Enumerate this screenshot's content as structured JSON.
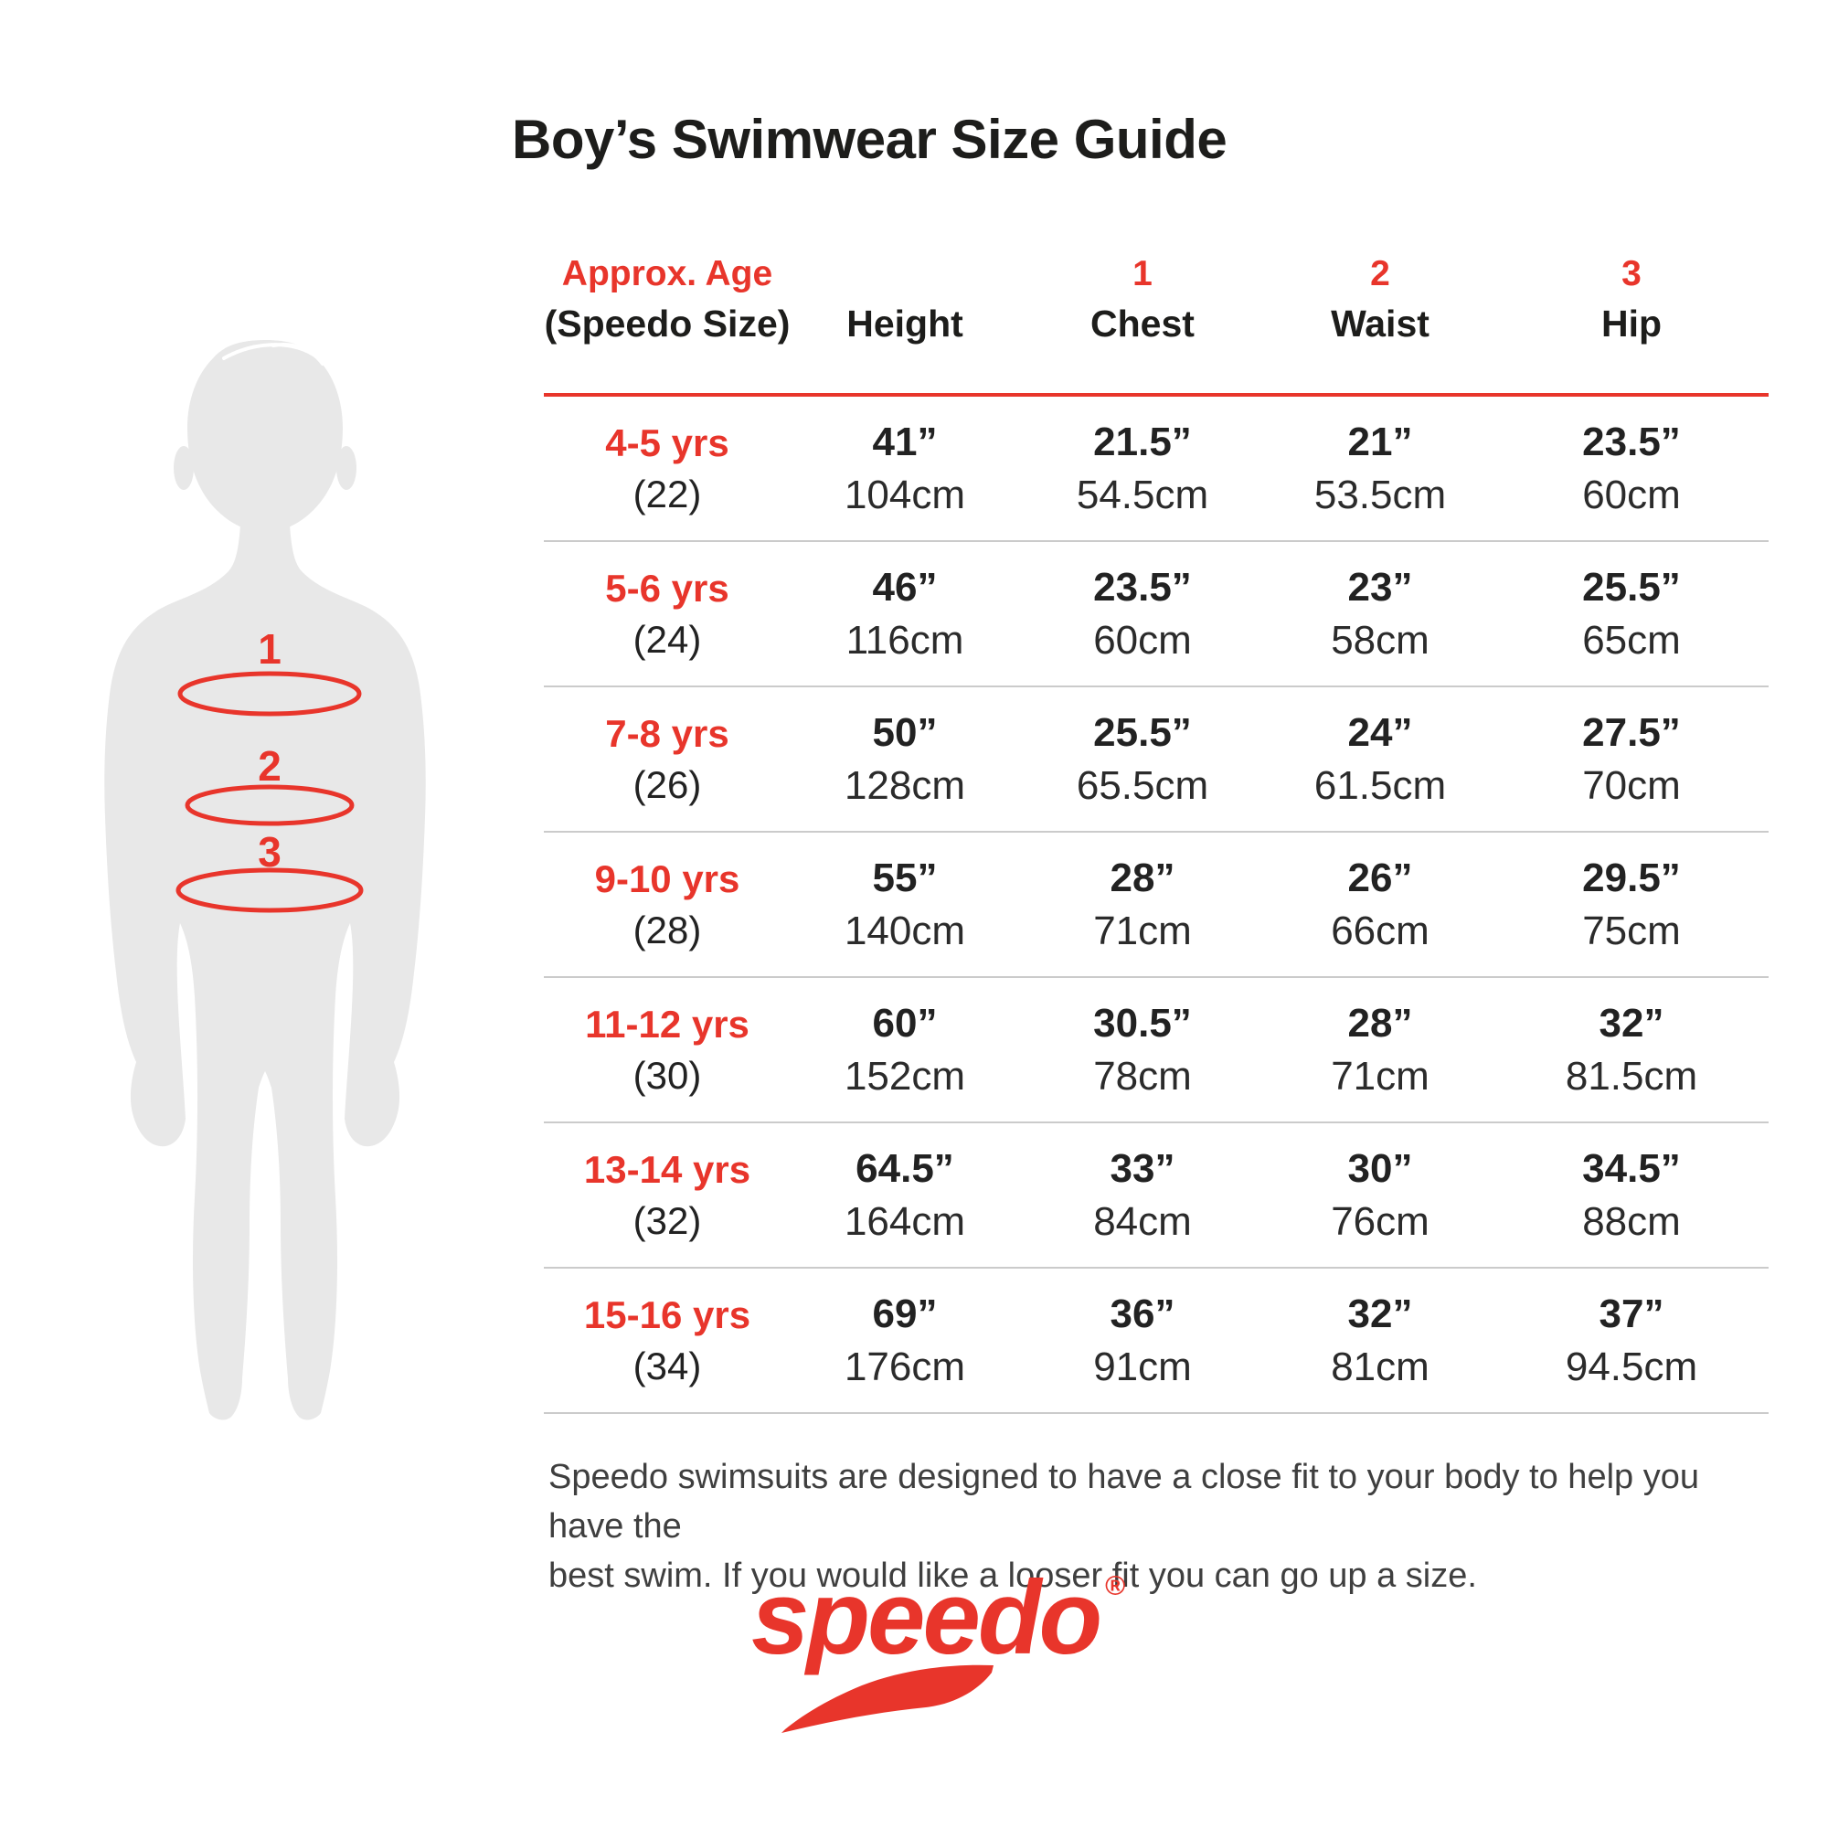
{
  "colors": {
    "accent": "#E8352B",
    "ink": "#1D1D1B",
    "silhouette": "#E8E8E8",
    "divider": "#CBCBCB"
  },
  "title": "Boy’s Swimwear Size Guide",
  "diagram": {
    "markers": [
      {
        "num": "1"
      },
      {
        "num": "2"
      },
      {
        "num": "3"
      }
    ]
  },
  "table": {
    "header": {
      "age_line1": "Approx. Age",
      "age_line2": "(Speedo Size)",
      "height_label": "Height",
      "cols": [
        {
          "num": "1",
          "label": "Chest"
        },
        {
          "num": "2",
          "label": "Waist"
        },
        {
          "num": "3",
          "label": "Hip"
        }
      ]
    },
    "rows": [
      {
        "age": "4-5 yrs",
        "size": "(22)",
        "height_in": "41”",
        "height_cm": "104cm",
        "chest_in": "21.5”",
        "chest_cm": "54.5cm",
        "waist_in": "21”",
        "waist_cm": "53.5cm",
        "hip_in": "23.5”",
        "hip_cm": "60cm"
      },
      {
        "age": "5-6 yrs",
        "size": "(24)",
        "height_in": "46”",
        "height_cm": "116cm",
        "chest_in": "23.5”",
        "chest_cm": "60cm",
        "waist_in": "23”",
        "waist_cm": "58cm",
        "hip_in": "25.5”",
        "hip_cm": "65cm"
      },
      {
        "age": "7-8 yrs",
        "size": "(26)",
        "height_in": "50”",
        "height_cm": "128cm",
        "chest_in": "25.5”",
        "chest_cm": "65.5cm",
        "waist_in": "24”",
        "waist_cm": "61.5cm",
        "hip_in": "27.5”",
        "hip_cm": "70cm"
      },
      {
        "age": "9-10 yrs",
        "size": "(28)",
        "height_in": "55”",
        "height_cm": "140cm",
        "chest_in": "28”",
        "chest_cm": "71cm",
        "waist_in": "26”",
        "waist_cm": "66cm",
        "hip_in": "29.5”",
        "hip_cm": "75cm"
      },
      {
        "age": "11-12 yrs",
        "size": "(30)",
        "height_in": "60”",
        "height_cm": "152cm",
        "chest_in": "30.5”",
        "chest_cm": "78cm",
        "waist_in": "28”",
        "waist_cm": "71cm",
        "hip_in": "32”",
        "hip_cm": "81.5cm"
      },
      {
        "age": "13-14 yrs",
        "size": "(32)",
        "height_in": "64.5”",
        "height_cm": "164cm",
        "chest_in": "33”",
        "chest_cm": "84cm",
        "waist_in": "30”",
        "waist_cm": "76cm",
        "hip_in": "34.5”",
        "hip_cm": "88cm"
      },
      {
        "age": "15-16 yrs",
        "size": "(34)",
        "height_in": "69”",
        "height_cm": "176cm",
        "chest_in": "36”",
        "chest_cm": "91cm",
        "waist_in": "32”",
        "waist_cm": "81cm",
        "hip_in": "37”",
        "hip_cm": "94.5cm"
      }
    ]
  },
  "footer": {
    "lines": [
      "Speedo swimsuits are designed to have a close fit to your body to help you have the",
      "best swim. If you would like a looser fit you can go up a size."
    ]
  },
  "logo": {
    "wordmark": "speedo",
    "registered": "®"
  }
}
